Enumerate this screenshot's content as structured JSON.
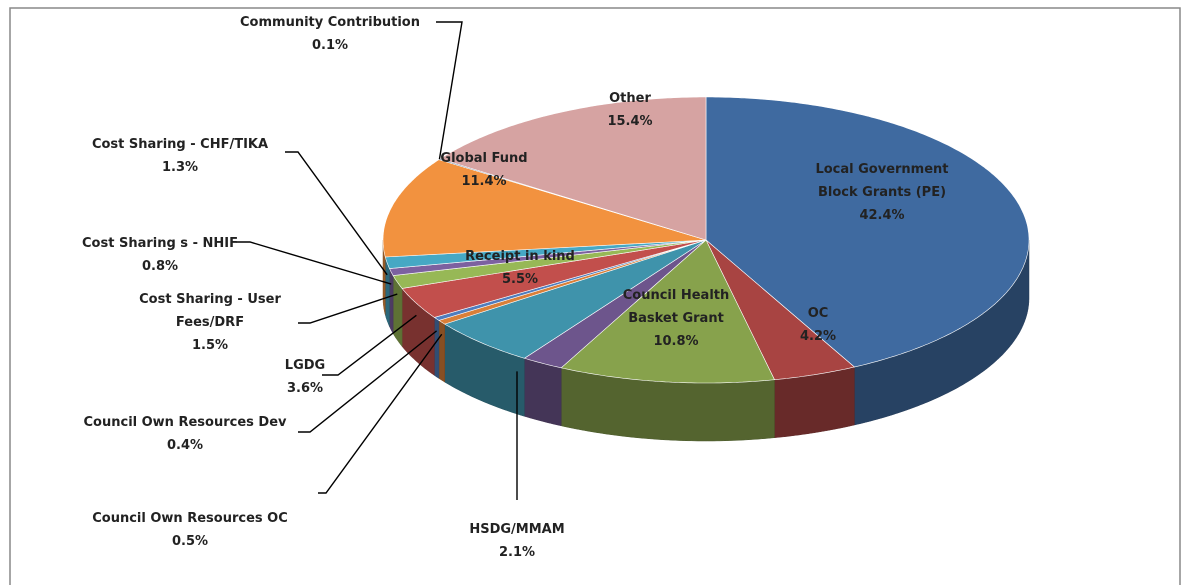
{
  "chart_data": {
    "type": "pie",
    "categories": [
      "Local Government Block Grants (PE)",
      "OC",
      "Council Health Basket Grant",
      "HSDG/MMAM",
      "Receipt in kind",
      "Council Own Resources OC",
      "Council Own Resources Dev",
      "LGDG",
      "Cost Sharing - User Fees/DRF",
      "Cost Sharing s - NHIF",
      "Cost Sharing - CHF/TIKA",
      "Global Fund",
      "Community Contribution",
      "Other"
    ],
    "values": [
      42.4,
      4.2,
      10.8,
      2.1,
      5.5,
      0.5,
      0.4,
      3.6,
      1.5,
      0.8,
      1.3,
      11.4,
      0.1,
      15.4
    ],
    "value_labels": [
      "42.4%",
      "4.2%",
      "10.8%",
      "2.1%",
      "5.5%",
      "0.5%",
      "0.4%",
      "3.6%",
      "1.5%",
      "0.8%",
      "1.3%",
      "11.4%",
      "0.1%",
      "15.4%"
    ],
    "colors": [
      "#3f6aa0",
      "#a84442",
      "#87a24c",
      "#6d558c",
      "#3f93ab",
      "#d97f38",
      "#4f7dbd",
      "#c24f4c",
      "#97b856",
      "#7c61a0",
      "#46a8c4",
      "#f2923f",
      "#2f5482",
      "#d6a3a2"
    ]
  }
}
